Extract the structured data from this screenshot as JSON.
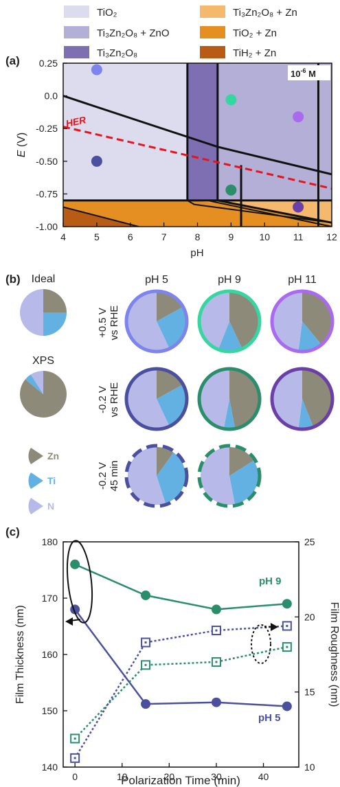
{
  "legend": [
    {
      "label": "TiO₂",
      "color": "#dcdcee"
    },
    {
      "label": "Ti₃Zn₂O₈ + ZnO",
      "color": "#b3afd6"
    },
    {
      "label": "Ti₃Zn₂O₈",
      "color": "#7d6fb2"
    },
    {
      "label": "Ti₃Zn₂O₈ + Zn",
      "color": "#f4b96d"
    },
    {
      "label": "TiO₂ + Zn",
      "color": "#e58f22"
    },
    {
      "label": "TiH₂ + Zn",
      "color": "#b85b15"
    }
  ],
  "panel_a": {
    "tag": "(a)",
    "concentration": "10",
    "concentration_exp": "-6",
    "concentration_unit": " M",
    "her_label": "HER",
    "xlabel": "pH",
    "ylabel_main": "E",
    "ylabel_unit": " (V)"
  },
  "panel_b": {
    "tag": "(b)",
    "ideal_label": "Ideal",
    "xps_label": "XPS",
    "col_labels": [
      "pH 5",
      "pH 9",
      "pH 11"
    ],
    "row1_label": [
      "+0.5 V",
      "vs RHE"
    ],
    "row2_label": [
      "-0.2 V",
      "vs RHE"
    ],
    "row3_label": [
      "-0.2 V",
      "45 min"
    ],
    "legend": [
      {
        "label": "Zn",
        "color": "#8d8a79"
      },
      {
        "label": "Ti",
        "color": "#62b1e2"
      },
      {
        "label": "N",
        "color": "#b7b9e8"
      }
    ],
    "colors": {
      "ph5_light": "#7d84ee",
      "ph5_dark": "#4a509d",
      "ph9_light": "#36d6a0",
      "ph9_dark": "#2a8e6a",
      "ph11_light": "#a96af0",
      "ph11_dark": "#6b3fa8"
    }
  },
  "panel_c": {
    "tag": "(c)",
    "xlabel": "Polarization Time (min)",
    "ylabel_left": "Film Thickness (nm)",
    "ylabel_right": "Film Roughness (nm)",
    "label_ph9": "pH 9",
    "label_ph5": "pH 5",
    "colors": {
      "ph9": "#2a8e6a",
      "ph5": "#4a509d"
    }
  },
  "chart_data": [
    {
      "type": "area",
      "xlim": [
        4,
        12
      ],
      "ylim": [
        -1.0,
        0.25
      ],
      "x_ticks": [
        4,
        5,
        6,
        7,
        8,
        9,
        10,
        11,
        12
      ],
      "y_ticks": [
        0.25,
        0.0,
        -0.25,
        -0.5,
        -0.75,
        -1.0
      ],
      "y_tick_labels": [
        "0.25",
        "0.0",
        "-0.25",
        "-0.50",
        "-0.75",
        "-1.00"
      ],
      "regions": [
        "TiO₂",
        "Ti₃Zn₂O₈ + ZnO",
        "Ti₃Zn₂O₈",
        "Ti₃Zn₂O₈ + Zn",
        "TiO₂ + Zn",
        "TiH₂ + Zn"
      ],
      "boundaries": [
        {
          "x": [
            4,
            8.6,
            12
          ],
          "y": [
            0.0,
            -0.39,
            -0.6
          ]
        },
        {
          "x": [
            4,
            12
          ],
          "y": [
            -0.8,
            -0.8
          ]
        },
        {
          "x": [
            8.6,
            12
          ],
          "y": [
            -0.8,
            -0.97
          ]
        },
        {
          "x": [
            7.7,
            7.7
          ],
          "y": [
            -0.8,
            0.25
          ]
        },
        {
          "x": [
            8.6,
            8.6
          ],
          "y": [
            -0.8,
            0.25
          ]
        },
        {
          "x": [
            9.3,
            9.3
          ],
          "y": [
            -1.0,
            -0.53
          ]
        },
        {
          "x": [
            11.6,
            11.6
          ],
          "y": [
            -1.0,
            0.25
          ]
        }
      ],
      "her_line": {
        "x": [
          4,
          12
        ],
        "y": [
          -0.236,
          -0.709
        ]
      },
      "points": [
        {
          "x": 5,
          "y": 0.2,
          "color": "#7d84ee"
        },
        {
          "x": 5,
          "y": -0.5,
          "color": "#4a509d"
        },
        {
          "x": 9,
          "y": -0.03,
          "color": "#36d6a0"
        },
        {
          "x": 9,
          "y": -0.72,
          "color": "#2a8e6a"
        },
        {
          "x": 11,
          "y": -0.16,
          "color": "#a96af0"
        },
        {
          "x": 11,
          "y": -0.85,
          "color": "#6b3fa8"
        }
      ]
    },
    {
      "type": "pie",
      "categories": [
        "Zn",
        "Ti",
        "N"
      ],
      "pies": [
        {
          "name": "Ideal",
          "values": [
            25,
            25,
            50
          ]
        },
        {
          "name": "XPS",
          "values": [
            86,
            5,
            9
          ]
        },
        {
          "name": "pH 5 +0.5 V",
          "values": [
            17,
            26,
            57
          ]
        },
        {
          "name": "pH 9 +0.5 V",
          "values": [
            43,
            13,
            44
          ]
        },
        {
          "name": "pH 11 +0.5 V",
          "values": [
            39,
            13,
            48
          ]
        },
        {
          "name": "pH 5 -0.2 V",
          "values": [
            17,
            26,
            57
          ]
        },
        {
          "name": "pH 9 -0.2 V",
          "values": [
            47,
            6,
            47
          ]
        },
        {
          "name": "pH 11 -0.2 V",
          "values": [
            44,
            8,
            48
          ]
        },
        {
          "name": "pH 5 -0.2 V 45 min",
          "values": [
            10,
            35,
            55
          ]
        },
        {
          "name": "pH 9 -0.2 V 45 min",
          "values": [
            16,
            31,
            53
          ]
        }
      ]
    },
    {
      "type": "line",
      "x": [
        0,
        15,
        30,
        45
      ],
      "xlim": [
        -2.5,
        47.5
      ],
      "ylim_left": [
        140,
        180
      ],
      "ylim_right": [
        10,
        25
      ],
      "x_ticks": [
        0,
        10,
        20,
        30,
        40
      ],
      "y_ticks_left": [
        140,
        150,
        160,
        170,
        180
      ],
      "y_ticks_right": [
        10,
        15,
        20,
        25
      ],
      "series": [
        {
          "name": "pH 9",
          "axis": "left",
          "values": [
            176.0,
            170.5,
            168.0,
            169.0
          ],
          "style": "solid"
        },
        {
          "name": "pH 5",
          "axis": "left",
          "values": [
            168.0,
            151.2,
            151.5,
            150.8
          ],
          "style": "solid"
        },
        {
          "name": "pH 9",
          "axis": "right",
          "values": [
            11.9,
            16.8,
            17.0,
            18.0
          ],
          "style": "dotted"
        },
        {
          "name": "pH 5",
          "axis": "right",
          "values": [
            10.6,
            18.3,
            19.1,
            19.4
          ],
          "style": "dotted"
        }
      ]
    }
  ]
}
